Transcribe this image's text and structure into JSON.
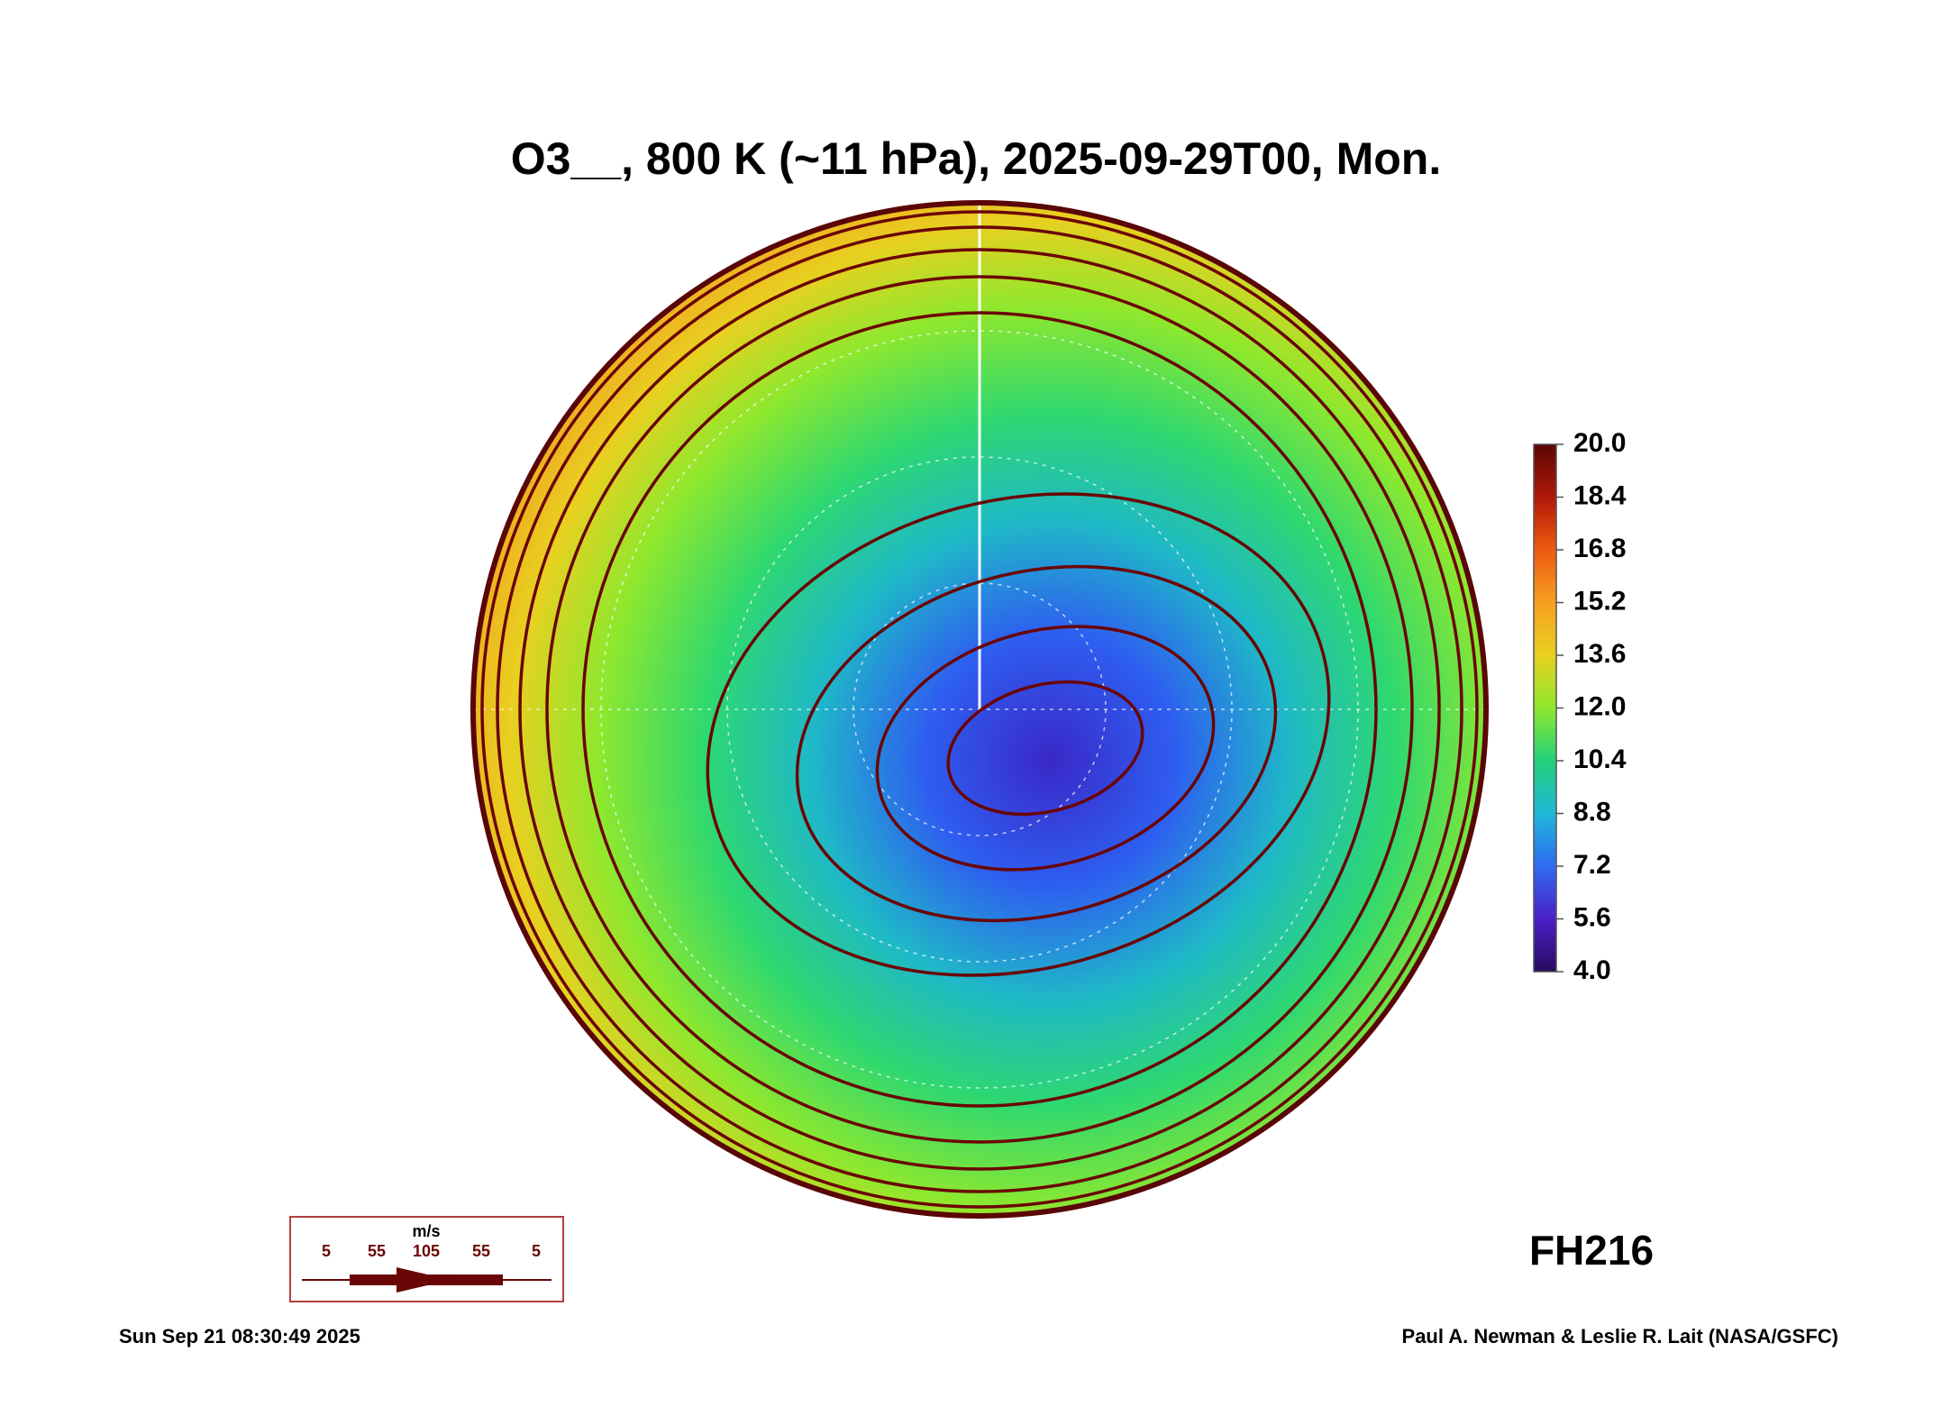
{
  "chart_data": {
    "type": "polar-map",
    "title": "O3__, 800 K (~11 hPa), 2025-09-29T00, Mon.",
    "colorbar": {
      "lim": [
        4,
        20
      ],
      "ticks": [
        {
          "value": 4,
          "label": "4.0"
        },
        {
          "value": 5.6,
          "label": "5.6"
        },
        {
          "value": 7.2,
          "label": "7.2"
        },
        {
          "value": 8.8,
          "label": "8.8"
        },
        {
          "value": 10.4,
          "label": "10.4"
        },
        {
          "value": 12,
          "label": "12.0"
        },
        {
          "value": 13.6,
          "label": "13.6"
        },
        {
          "value": 15.2,
          "label": "15.2"
        },
        {
          "value": 16.8,
          "label": "16.8"
        },
        {
          "value": 18.4,
          "label": "18.4"
        },
        {
          "value": 20,
          "label": "20.0"
        }
      ],
      "colors": [
        "#2a0a5e",
        "#4b1fc8",
        "#2f6cf0",
        "#1fb8d8",
        "#22d07a",
        "#8ee82e",
        "#e8d020",
        "#f7a020",
        "#ee5a10",
        "#b01808",
        "#5a0606"
      ]
    },
    "wind_scale": {
      "unit": "m/s",
      "values": [
        5,
        55,
        105,
        55,
        5
      ]
    },
    "forecast_label": "FH216",
    "timestamp": "Sun Sep 21 08:30:49 2025",
    "credit": "Paul A. Newman & Leslie R. Lait (NASA/GSFC)"
  }
}
